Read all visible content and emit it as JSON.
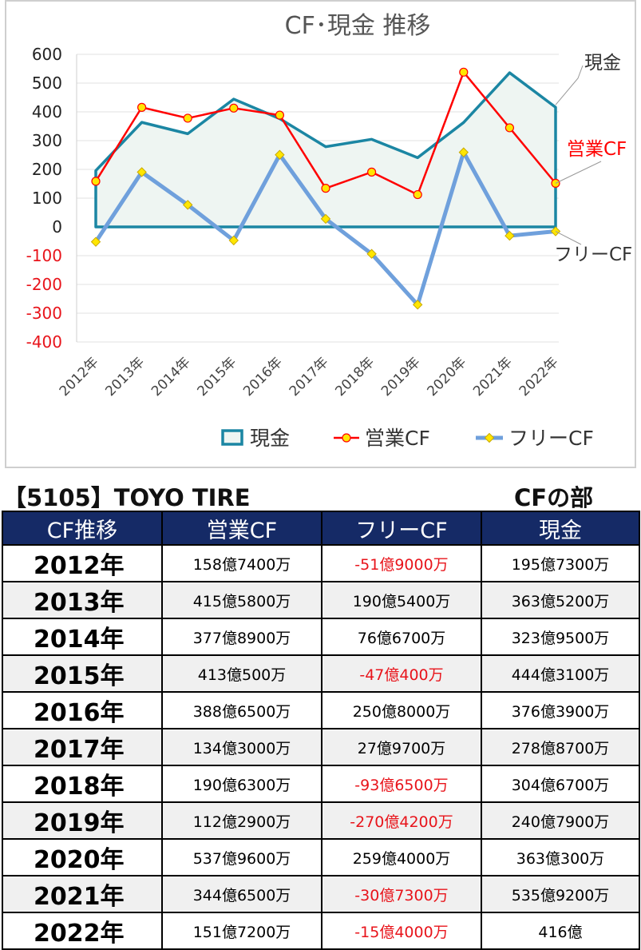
{
  "chart_data": {
    "type": "line",
    "title": "CF･現金 推移",
    "categories": [
      "2012年",
      "2013年",
      "2014年",
      "2015年",
      "2016年",
      "2017年",
      "2018年",
      "2019年",
      "2020年",
      "2021年",
      "2022年"
    ],
    "ylim": [
      -400,
      600
    ],
    "yticks": [
      600,
      500,
      400,
      300,
      200,
      100,
      0,
      -100,
      -200,
      -300,
      -400
    ],
    "grid": true,
    "legend_position": "bottom",
    "series": [
      {
        "name": "現金",
        "kind": "area",
        "color": "#1b86a3",
        "values": [
          195.73,
          363.52,
          323.95,
          444.31,
          376.39,
          278.87,
          304.67,
          240.79,
          363.03,
          535.92,
          416
        ]
      },
      {
        "name": "営業CF",
        "kind": "line",
        "color": "#ff0000",
        "values": [
          158.74,
          415.58,
          377.89,
          413.05,
          388.65,
          134.3,
          190.63,
          112.29,
          537.96,
          344.65,
          151.72
        ]
      },
      {
        "name": "フリーCF",
        "kind": "line",
        "color": "#6fa0dc",
        "values": [
          -51.9,
          190.54,
          76.67,
          -47.04,
          250.8,
          27.97,
          -93.65,
          -270.42,
          259.4,
          -30.73,
          -15.4
        ]
      }
    ],
    "annotations": [
      "現金",
      "営業CF",
      "フリーCF"
    ]
  },
  "header": {
    "company": "【5105】TOYO TIRE",
    "section": "CFの部"
  },
  "table": {
    "columns": [
      "CF推移",
      "営業CF",
      "フリーCF",
      "現金"
    ],
    "rows": [
      {
        "year": "2012年",
        "op": "158億7400万",
        "free": "-51億9000万",
        "cash": "195億7300万"
      },
      {
        "year": "2013年",
        "op": "415億5800万",
        "free": "190億5400万",
        "cash": "363億5200万"
      },
      {
        "year": "2014年",
        "op": "377億8900万",
        "free": "76億6700万",
        "cash": "323億9500万"
      },
      {
        "year": "2015年",
        "op": "413億500万",
        "free": "-47億400万",
        "cash": "444億3100万"
      },
      {
        "year": "2016年",
        "op": "388億6500万",
        "free": "250億8000万",
        "cash": "376億3900万"
      },
      {
        "year": "2017年",
        "op": "134億3000万",
        "free": "27億9700万",
        "cash": "278億8700万"
      },
      {
        "year": "2018年",
        "op": "190億6300万",
        "free": "-93億6500万",
        "cash": "304億6700万"
      },
      {
        "year": "2019年",
        "op": "112億2900万",
        "free": "-270億4200万",
        "cash": "240億7900万"
      },
      {
        "year": "2020年",
        "op": "537億9600万",
        "free": "259億4000万",
        "cash": "363億300万"
      },
      {
        "year": "2021年",
        "op": "344億6500万",
        "free": "-30億7300万",
        "cash": "535億9200万"
      },
      {
        "year": "2022年",
        "op": "151億7200万",
        "free": "-15億4000万",
        "cash": "416億"
      }
    ]
  }
}
